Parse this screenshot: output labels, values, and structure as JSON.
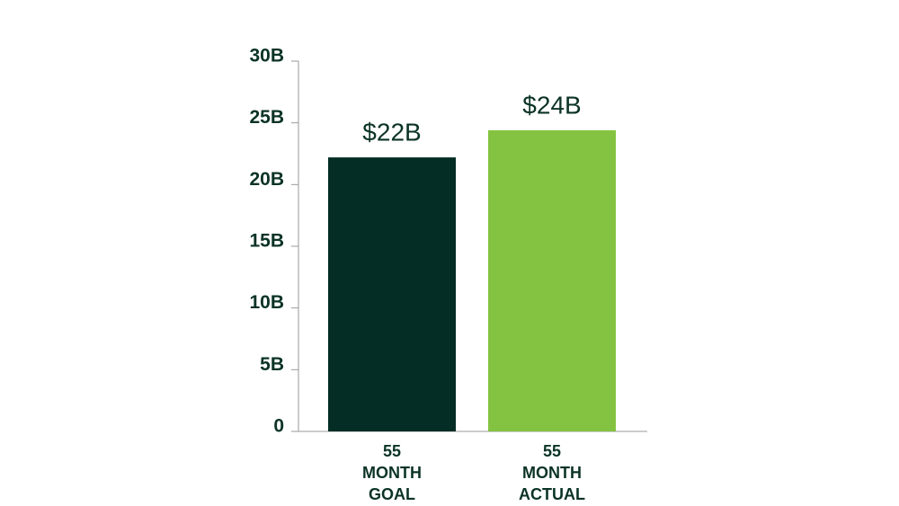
{
  "chart_data": {
    "type": "bar",
    "categories": [
      "55 MONTH GOAL",
      "55 MONTH ACTUAL"
    ],
    "values": [
      22.2,
      24.4
    ],
    "value_labels": [
      "$22B",
      "$24B"
    ],
    "colors": [
      "#032d25",
      "#84c341"
    ],
    "ylim": [
      0,
      30
    ],
    "yticks": [
      0,
      {
        "value": 5,
        "label": "5B"
      },
      {
        "value": 10,
        "label": "10B"
      },
      {
        "value": 15,
        "label": "15B"
      },
      {
        "value": 20,
        "label": "20B"
      },
      {
        "value": 25,
        "label": "25B"
      },
      {
        "value": 30,
        "label": "30B"
      }
    ],
    "grid": false
  }
}
